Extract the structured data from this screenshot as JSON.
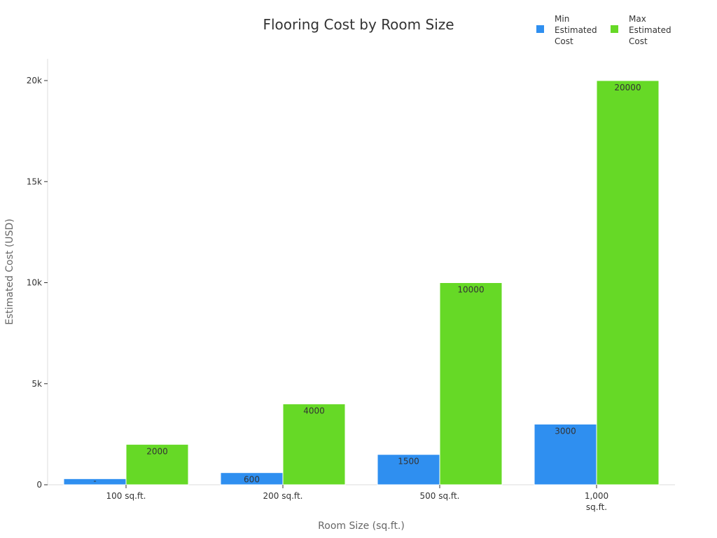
{
  "chart_data": {
    "type": "bar",
    "title": "Flooring Cost by Room Size",
    "xlabel": "Room Size (sq.ft.)",
    "ylabel": "Estimated Cost (USD)",
    "categories": [
      "100 sq.ft.",
      "200 sq.ft.",
      "500 sq.ft.",
      "1,000 sq.ft."
    ],
    "series": [
      {
        "name": "Min Estimated Cost",
        "values": [
          300,
          600,
          1500,
          3000
        ],
        "color": "#2f8ff0"
      },
      {
        "name": "Max Estimated Cost",
        "values": [
          2000,
          4000,
          10000,
          20000
        ],
        "color": "#66d926"
      }
    ],
    "value_labels": [
      [
        "-",
        "600",
        "1500",
        "3000"
      ],
      [
        "2000",
        "4000",
        "10000",
        "20000"
      ]
    ],
    "ylim": [
      0,
      21000
    ],
    "yticks": [
      0,
      5000,
      10000,
      15000,
      20000
    ],
    "ytick_labels": [
      "0",
      "5k",
      "10k",
      "15k",
      "20k"
    ],
    "grid": false,
    "legend_position": "top-right"
  }
}
